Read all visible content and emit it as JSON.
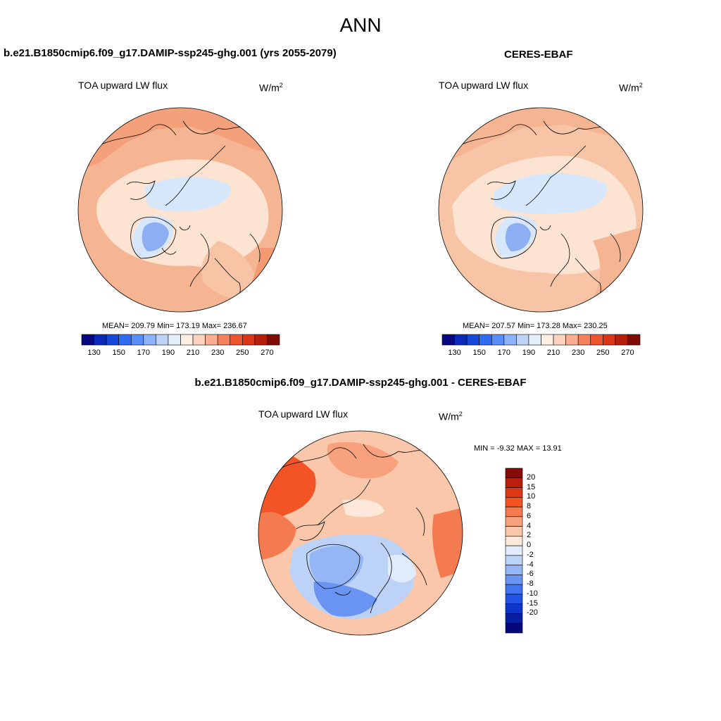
{
  "figure": {
    "title": "ANN"
  },
  "panels": [
    {
      "title": "b.e21.B1850cmip6.f09_g17.DAMIP-ssp245-ghg.001 (yrs 2055-2079)",
      "variable": "TOA upward LW flux",
      "units": "W/m",
      "units_sup": "2",
      "stats_text": "MEAN= 209.79  Min= 173.19  Max= 236.67",
      "stats": {
        "mean": 209.79,
        "min": 173.19,
        "max": 236.67
      }
    },
    {
      "title": "CERES-EBAF",
      "variable": "TOA upward LW flux",
      "units": "W/m",
      "units_sup": "2",
      "stats_text": "MEAN= 207.57  Min= 173.28  Max= 230.25",
      "stats": {
        "mean": 207.57,
        "min": 173.28,
        "max": 230.25
      }
    },
    {
      "title": "b.e21.B1850cmip6.f09_g17.DAMIP-ssp245-ghg.001 - CERES-EBAF",
      "variable": "TOA upward LW flux",
      "units": "W/m",
      "units_sup": "2",
      "stats_text": "MIN =  -9.32 MAX =  13.91",
      "stats": {
        "min": -9.32,
        "max": 13.91
      }
    }
  ],
  "colorbar_main": {
    "colors": [
      "#08087e",
      "#0b2ab5",
      "#1749d8",
      "#2f6cef",
      "#5a8ef5",
      "#8cb2f7",
      "#bcd3f7",
      "#e3eefb",
      "#fdeee2",
      "#fbd2bb",
      "#f8ae8f",
      "#f4805d",
      "#ed5530",
      "#db3517",
      "#b51f0c",
      "#7e0d06"
    ],
    "tick_labels": [
      "130",
      "150",
      "170",
      "190",
      "210",
      "230",
      "250",
      "270"
    ]
  },
  "colorbar_diff": {
    "colors_top_to_bottom": [
      "#8a0a06",
      "#bb1f0c",
      "#dd3715",
      "#f25425",
      "#f47a4f",
      "#f7a27d",
      "#fac7aa",
      "#fde8da",
      "#e0ecfb",
      "#bcd3f7",
      "#95b6f5",
      "#6a94f1",
      "#4373ee",
      "#2253e6",
      "#0c36c8",
      "#071fa0",
      "#06087a"
    ],
    "tick_labels": [
      "20",
      "15",
      "10",
      "8",
      "6",
      "4",
      "2",
      "0",
      "-2",
      "-4",
      "-6",
      "-8",
      "-10",
      "-15",
      "-20"
    ]
  },
  "colors": {
    "ocean_warm": "#f6b592",
    "land_light": "#fde3d2",
    "ice_blue": "#d6e7fb",
    "greenland_blue": "#8eaef3",
    "coast": "#000000"
  }
}
